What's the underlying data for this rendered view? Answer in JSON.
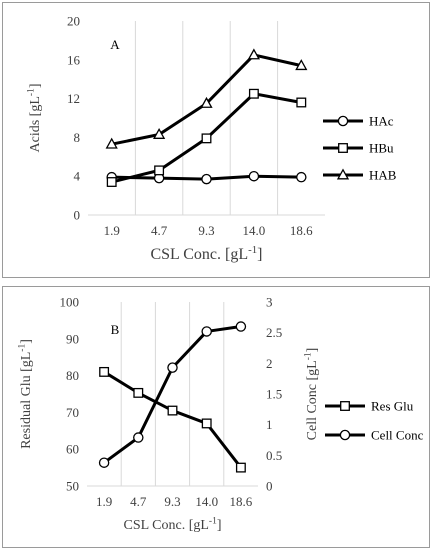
{
  "chart_data": [
    {
      "type": "line",
      "panel_label": "A",
      "categories": [
        "1.9",
        "4.7",
        "9.3",
        "14.0",
        "18.6"
      ],
      "xlabel": "CSL Conc. [gL",
      "xlabel_sup": "-1",
      "xlabel_end": "]",
      "ylabel": "Acids [gL",
      "ylabel_sup": "-1",
      "ylabel_end": "]",
      "ylim": [
        0,
        20
      ],
      "yticks": [
        "0",
        "4",
        "8",
        "12",
        "16",
        "20"
      ],
      "grid": "vertical",
      "legend_position": "right",
      "series": [
        {
          "name": "HAc",
          "marker": "circle",
          "values": [
            3.9,
            3.8,
            3.7,
            4.0,
            3.9
          ]
        },
        {
          "name": "HBu",
          "marker": "square",
          "values": [
            3.4,
            4.6,
            7.9,
            12.5,
            11.6
          ]
        },
        {
          "name": "HAB",
          "marker": "triangle",
          "values": [
            7.3,
            8.3,
            11.5,
            16.5,
            15.4
          ]
        }
      ]
    },
    {
      "type": "line",
      "panel_label": "B",
      "categories": [
        "1.9",
        "4.7",
        "9.3",
        "14.0",
        "18.6"
      ],
      "xlabel": "CSL Conc. [gL",
      "xlabel_sup": "-1",
      "xlabel_end": "]",
      "ylabel": "Residual Glu [gL",
      "ylabel_sup": "-1",
      "ylabel_end": "]",
      "ylim": [
        50,
        100
      ],
      "yticks": [
        "50",
        "60",
        "70",
        "80",
        "90",
        "100"
      ],
      "y2label": "Cell Conc [gL",
      "y2label_sup": "-1",
      "y2label_end": "]",
      "y2lim": [
        0,
        3
      ],
      "y2ticks": [
        "0",
        "0.5",
        "1",
        "1.5",
        "2",
        "2.5",
        "3"
      ],
      "grid": "vertical",
      "legend_position": "right",
      "series": [
        {
          "name": "Res Glu",
          "marker": "square",
          "axis": "left",
          "values": [
            81,
            75.3,
            70.5,
            67,
            55
          ]
        },
        {
          "name": "Cell Conc",
          "marker": "circle",
          "axis": "right",
          "values": [
            0.38,
            0.79,
            1.93,
            2.52,
            2.6
          ]
        }
      ]
    }
  ]
}
